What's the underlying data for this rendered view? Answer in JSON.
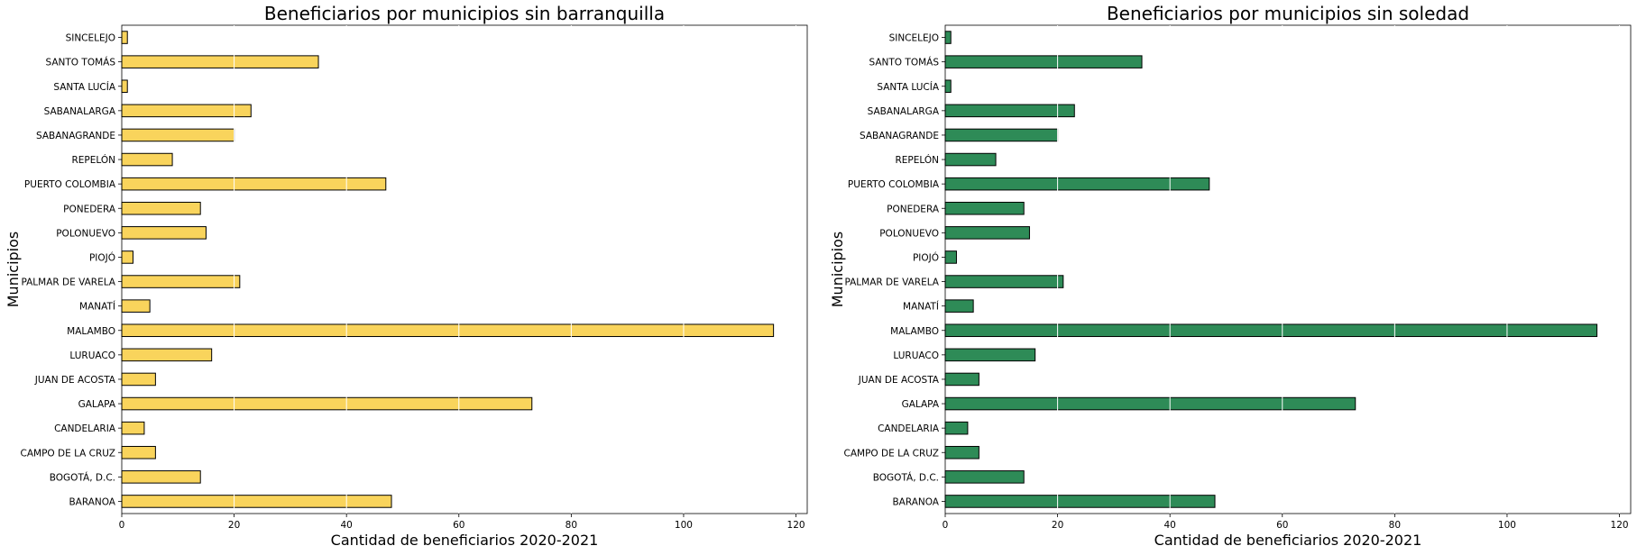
{
  "chart_data": [
    {
      "type": "bar",
      "orientation": "horizontal",
      "title": "Beneficiarios por municipios sin barranquilla",
      "xlabel": "Cantidad de beneficiarios 2020-2021",
      "ylabel": "Municipios",
      "categories": [
        "BARANOA",
        "BOGOTÁ, D.C.",
        "CAMPO DE LA CRUZ",
        "CANDELARIA",
        "GALAPA",
        "JUAN DE ACOSTA",
        "LURUACO",
        "MALAMBO",
        "MANATÍ",
        "PALMAR DE VARELA",
        "PIOJÓ",
        "POLONUEVO",
        "PONEDERA",
        "PUERTO COLOMBIA",
        "REPELÓN",
        "SABANAGRANDE",
        "SABANALARGA",
        "SANTA LUCÍA",
        "SANTO TOMÁS",
        "SINCELEJO"
      ],
      "values": [
        48,
        14,
        6,
        4,
        73,
        6,
        16,
        116,
        5,
        21,
        2,
        15,
        14,
        47,
        9,
        20,
        23,
        1,
        35,
        1
      ],
      "xlim": [
        0,
        122
      ],
      "xticks": [
        0,
        20,
        40,
        60,
        80,
        100,
        120
      ],
      "grid": "vertical white lines",
      "color": "#F9D45C",
      "edge_color": "#000000"
    },
    {
      "type": "bar",
      "orientation": "horizontal",
      "title": "Beneficiarios por municipios sin soledad",
      "xlabel": "Cantidad de beneficiarios 2020-2021",
      "ylabel": "Municipios",
      "categories": [
        "BARANOA",
        "BOGOTÁ, D.C.",
        "CAMPO DE LA CRUZ",
        "CANDELARIA",
        "GALAPA",
        "JUAN DE ACOSTA",
        "LURUACO",
        "MALAMBO",
        "MANATÍ",
        "PALMAR DE VARELA",
        "PIOJÓ",
        "POLONUEVO",
        "PONEDERA",
        "PUERTO COLOMBIA",
        "REPELÓN",
        "SABANAGRANDE",
        "SABANALARGA",
        "SANTA LUCÍA",
        "SANTO TOMÁS",
        "SINCELEJO"
      ],
      "values": [
        48,
        14,
        6,
        4,
        73,
        6,
        16,
        116,
        5,
        21,
        2,
        15,
        14,
        47,
        9,
        20,
        23,
        1,
        35,
        1
      ],
      "xlim": [
        0,
        122
      ],
      "xticks": [
        0,
        20,
        40,
        60,
        80,
        100,
        120
      ],
      "grid": "vertical white lines",
      "color": "#2E8B57",
      "edge_color": "#000000"
    }
  ]
}
